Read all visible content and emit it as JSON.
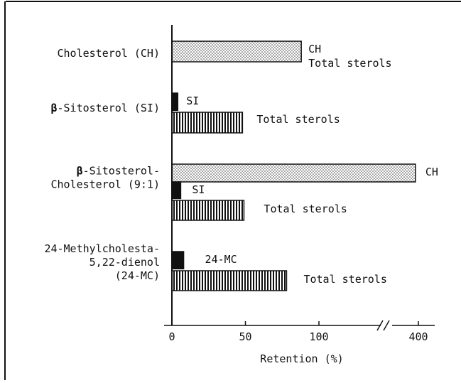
{
  "chart_data": {
    "type": "bar",
    "orientation": "horizontal",
    "title": "",
    "xlabel": "Retention (%)",
    "ylabel": "",
    "x_ticks": [
      "0",
      "50",
      "100",
      "400"
    ],
    "x_axis_break": "between 100 and 400",
    "legend": "none (bars labelled directly)",
    "grid": false,
    "series_styles": {
      "CH": "dotted fill",
      "SI": "solid black",
      "24-MC": "solid black",
      "Total sterols": "vertical stripes"
    },
    "groups": [
      {
        "category": [
          "Cholesterol (CH)"
        ],
        "bars": [
          {
            "series": "CH",
            "label": "CH",
            "value": 88
          },
          {
            "series": "Total sterols",
            "label": "Total sterols",
            "value": 88
          }
        ]
      },
      {
        "category": [
          "β-Sitosterol (SI)"
        ],
        "bars": [
          {
            "series": "SI",
            "label": "SI",
            "value": 4
          },
          {
            "series": "Total sterols",
            "label": "Total sterols",
            "value": 48
          }
        ]
      },
      {
        "category": [
          "β-Sitosterol-",
          "Cholesterol (9:1)"
        ],
        "bars": [
          {
            "series": "CH",
            "label": "CH",
            "value": 398
          },
          {
            "series": "SI",
            "label": "SI",
            "value": 6
          },
          {
            "series": "Total sterols",
            "label": "Total sterols",
            "value": 49
          }
        ]
      },
      {
        "category": [
          "24-Methylcholesta-",
          "5,22-dienol",
          "(24-MC)"
        ],
        "bars": [
          {
            "series": "24-MC",
            "label": "24-MC",
            "value": 8
          },
          {
            "series": "Total sterols",
            "label": "Total sterols",
            "value": 78
          }
        ]
      }
    ]
  }
}
